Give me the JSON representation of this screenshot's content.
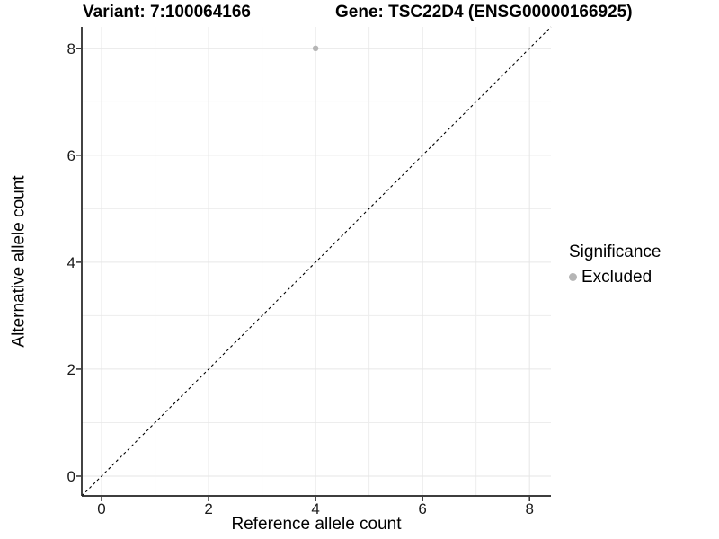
{
  "plot": {
    "title_left": "Variant: 7:100064166",
    "title_right": "Gene: TSC22D4 (ENSG00000166925)"
  },
  "chart_data": {
    "type": "scatter",
    "title": "Variant: 7:100064166 — Gene: TSC22D4 (ENSG00000166925)",
    "xlabel": "Reference allele count",
    "ylabel": "Alternative allele count",
    "xlim": [
      -0.37,
      8.4
    ],
    "ylim": [
      -0.37,
      8.4
    ],
    "x_ticks": [
      0,
      2,
      4,
      6,
      8
    ],
    "y_ticks": [
      0,
      2,
      4,
      6,
      8
    ],
    "x_minor_ticks": [
      1,
      3,
      5,
      7
    ],
    "y_minor_ticks": [
      1,
      3,
      5,
      7
    ],
    "grid": "on",
    "series": [
      {
        "name": "Excluded",
        "marker": "circle",
        "color": "#b5b5b5",
        "points": [
          {
            "x": 4,
            "y": 8
          }
        ]
      }
    ],
    "reference_line": {
      "slope": 1,
      "intercept": 0,
      "linestyle": "dashed",
      "color": "#000000"
    },
    "legend": {
      "title": "Significance",
      "position": "right",
      "items": [
        {
          "label": "Excluded",
          "color": "#b5b5b5",
          "marker": "circle"
        }
      ]
    }
  },
  "colors": {
    "background": "#ffffff",
    "grid_major": "#e6e6e6",
    "grid_minor": "#ededed",
    "axis_line": "#222222",
    "tick_text": "#1a1a1a",
    "excluded": "#b5b5b5"
  }
}
